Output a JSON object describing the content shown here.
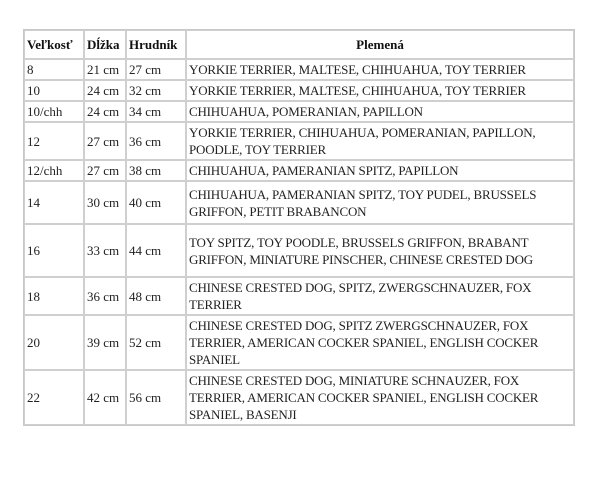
{
  "headers": [
    "Veľkosť",
    "Dĺžka",
    "Hrudník",
    "Plemená"
  ],
  "rows": [
    {
      "size": "8",
      "length": "21 cm",
      "chest": "27 cm",
      "breeds": "YORKIE TERRIER, MALTESE, CHIHUAHUA, TOY TERRIER"
    },
    {
      "size": "10",
      "length": "24 cm",
      "chest": "32 cm",
      "breeds": "YORKIE TERRIER, MALTESE, CHIHUAHUA, TOY TERRIER"
    },
    {
      "size": "10/chh",
      "length": "24 cm",
      "chest": "34 cm",
      "breeds": "CHIHUAHUA, POMERANIAN, PAPILLON"
    },
    {
      "size": "12",
      "length": "27 cm",
      "chest": "36 cm",
      "breeds": "YORKIE TERRIER, CHIHUAHUA, POMERANIAN, PAPILLON, POODLE, TOY TERRIER"
    },
    {
      "size": "12/chh",
      "length": "27 cm",
      "chest": "38 cm",
      "breeds": "CHIHUAHUA, PAMERANIAN SPITZ, PAPILLON"
    },
    {
      "size": "14",
      "length": "30 cm",
      "chest": "40 cm",
      "breeds": "CHIHUAHUA, PAMERANIAN SPITZ, TOY PUDEL, BRUSSELS GRIFFON, PETIT BRABANCON"
    },
    {
      "size": "16",
      "length": "33 cm",
      "chest": "44 cm",
      "breeds": "TOY SPITZ, TOY POODLE, BRUSSELS GRIFFON, BRABANT GRIFFON, MINIATURE PINSCHER, CHINESE CRESTED DOG"
    },
    {
      "size": "18",
      "length": "36 cm",
      "chest": "48 cm",
      "breeds": "CHINESE CRESTED DOG, SPITZ, ZWERGSCHNAUZER, FOX TERRIER"
    },
    {
      "size": "20",
      "length": "39 cm",
      "chest": "52 cm",
      "breeds": "CHINESE CRESTED DOG, SPITZ ZWERGSCHNAUZER, FOX TERRIER, AMERICAN COCKER SPANIEL, ENGLISH COCKER SPANIEL"
    },
    {
      "size": "22",
      "length": "42 cm",
      "chest": "56 cm",
      "breeds": "CHINESE CRESTED DOG, MINIATURE SCHNAUZER, FOX TERRIER, AMERICAN COCKER SPANIEL, ENGLISH COCKER SPANIEL, BASENJI"
    }
  ]
}
